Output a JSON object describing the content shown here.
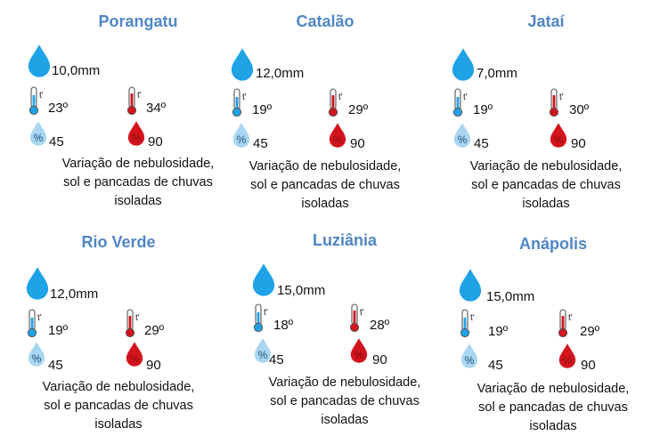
{
  "colors": {
    "title": "#4f86c6",
    "rain_drop": "#1fa2e6",
    "humidity_min": "#a9d6f0",
    "humidity_max": "#d3141d",
    "thermo_min": "#1fa2e6",
    "thermo_max": "#d3141d"
  },
  "icons": {
    "rain": "rain-drop-icon",
    "temp_min": "thermometer-cold-icon",
    "temp_max": "thermometer-hot-icon",
    "humidity_min": "humidity-light-drop-icon",
    "humidity_max": "humidity-red-drop-icon"
  },
  "cities": [
    {
      "name": "Porangatu",
      "rain": "10,0mm",
      "temp_min": "23º",
      "temp_max": "34º",
      "humidity_min": "45",
      "humidity_max": "90",
      "description": [
        "Variação de nebulosidade,",
        "sol e pancadas de chuvas",
        "isoladas"
      ]
    },
    {
      "name": "Catalão",
      "rain": "12,0mm",
      "temp_min": "19º",
      "temp_max": "29º",
      "humidity_min": "45",
      "humidity_max": "90",
      "description": [
        "Variação de nebulosidade,",
        "sol e pancadas de chuvas",
        "isoladas"
      ]
    },
    {
      "name": "Jataí",
      "rain": "7,0mm",
      "temp_min": "19º",
      "temp_max": "30º",
      "humidity_min": "45",
      "humidity_max": "90",
      "description": [
        "Variação de nebulosidade,",
        "sol e pancadas de chuvas",
        "isoladas"
      ]
    },
    {
      "name": "Rio Verde",
      "rain": "12,0mm",
      "temp_min": "19º",
      "temp_max": "29º",
      "humidity_min": "45",
      "humidity_max": "90",
      "description": [
        "Variação de nebulosidade,",
        "sol e pancadas de chuvas",
        "isoladas"
      ]
    },
    {
      "name": "Luziânia",
      "rain": "15,0mm",
      "temp_min": "18º",
      "temp_max": "28º",
      "humidity_min": "45",
      "humidity_max": "90",
      "description": [
        "Variação de nebulosidade,",
        "sol e pancadas de chuvas",
        "isoladas"
      ]
    },
    {
      "name": "Anápolis",
      "rain": "15,0mm",
      "temp_min": "19º",
      "temp_max": "29º",
      "humidity_min": "45",
      "humidity_max": "90",
      "description": [
        "Variação de nebulosidade,",
        "sol e pancadas de chuvas",
        "isoladas"
      ]
    }
  ]
}
